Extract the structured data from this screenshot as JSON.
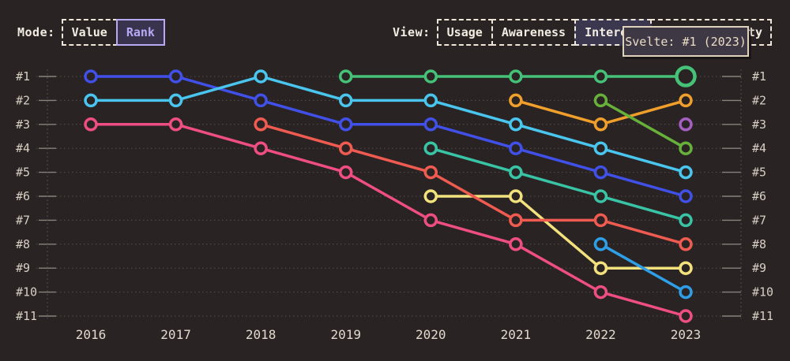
{
  "controls": {
    "mode_label": "Mode:",
    "mode_options": [
      {
        "label": "Value",
        "selected": false
      },
      {
        "label": "Rank",
        "selected": true
      }
    ],
    "view_label": "View:",
    "view_options": [
      {
        "label": "Usage",
        "selected": false
      },
      {
        "label": "Awareness",
        "selected": false
      },
      {
        "label": "Interest",
        "selected": true
      },
      {
        "label": "Positivity",
        "selected": false,
        "partially_hidden_by_tooltip": true
      }
    ],
    "selected_accent_color": "#b7a9f4",
    "selected_fill_color": "#3b374e"
  },
  "tooltip": {
    "text": "Svelte: #1 (2023)"
  },
  "chart_data": {
    "type": "line",
    "variant": "bump-rank-chart",
    "title": "",
    "xlabel": "",
    "ylabel": "",
    "x": [
      2016,
      2017,
      2018,
      2019,
      2020,
      2021,
      2022,
      2023
    ],
    "rank_label_prefix": "#",
    "max_rank": 11,
    "y_axis_inverted_ranks": true,
    "grid": "dotted-horizontal",
    "legend": "none",
    "series": [
      {
        "name": "yellow",
        "color": "#f3e17d",
        "values": [
          null,
          null,
          null,
          null,
          6,
          6,
          9,
          9
        ]
      },
      {
        "name": "orange",
        "color": "#ef9f2a",
        "values": [
          null,
          null,
          null,
          null,
          null,
          2,
          3,
          2
        ]
      },
      {
        "name": "indigo-blue",
        "color": "#4150e6",
        "values": [
          1,
          1,
          2,
          3,
          3,
          4,
          5,
          6
        ]
      },
      {
        "name": "pink",
        "color": "#ef4e84",
        "values": [
          3,
          3,
          4,
          5,
          7,
          8,
          10,
          11
        ]
      },
      {
        "name": "salmon",
        "color": "#ef5b50",
        "values": [
          null,
          null,
          3,
          4,
          5,
          7,
          7,
          8
        ]
      },
      {
        "name": "cyan",
        "color": "#49c5ee",
        "values": [
          2,
          2,
          1,
          2,
          2,
          3,
          4,
          5
        ]
      },
      {
        "name": "teal",
        "color": "#38c4a5",
        "values": [
          null,
          null,
          null,
          null,
          4,
          5,
          6,
          7
        ]
      },
      {
        "name": "olive-green",
        "color": "#67b03a",
        "values": [
          null,
          null,
          null,
          null,
          null,
          null,
          2,
          4
        ]
      },
      {
        "name": "bright-blue",
        "color": "#2e9fe6",
        "values": [
          null,
          null,
          null,
          null,
          null,
          null,
          8,
          10
        ]
      },
      {
        "name": "green-svelte",
        "color": "#45c178",
        "values": [
          null,
          null,
          null,
          1,
          1,
          1,
          1,
          1
        ]
      },
      {
        "name": "purple",
        "color": "#a55fc0",
        "values": [
          null,
          null,
          null,
          null,
          null,
          null,
          null,
          3
        ]
      }
    ],
    "highlight": {
      "series": "green-svelte",
      "year": 2023,
      "rank": 1
    }
  }
}
